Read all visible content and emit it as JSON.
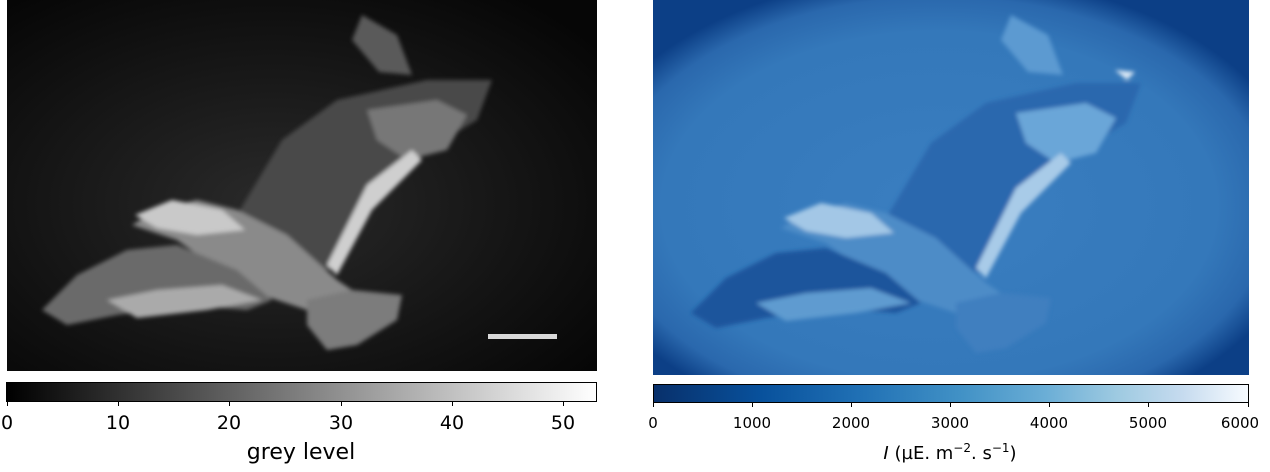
{
  "left_panel": {
    "colorbar": {
      "ticks": [
        "0",
        "10",
        "20",
        "30",
        "40",
        "50"
      ],
      "tick_values": [
        0,
        10,
        20,
        30,
        40,
        50
      ],
      "range": [
        0,
        53
      ],
      "label": "grey level",
      "colormap": "grey",
      "colors": [
        "#000000",
        "#ffffff"
      ]
    }
  },
  "right_panel": {
    "colorbar": {
      "ticks": [
        "0",
        "1000",
        "2000",
        "3000",
        "4000",
        "5000",
        "6000"
      ],
      "tick_values": [
        0,
        1000,
        2000,
        3000,
        4000,
        5000,
        6000
      ],
      "range": [
        0,
        6000
      ],
      "label_symbol": "I",
      "label_unit_prefix": "(µE. m",
      "label_exp1": "−2",
      "label_mid": ". s",
      "label_exp2": "−1",
      "label_end": ")",
      "colormap": "blues",
      "colors": [
        "#08306b",
        "#f7fbff"
      ]
    }
  }
}
